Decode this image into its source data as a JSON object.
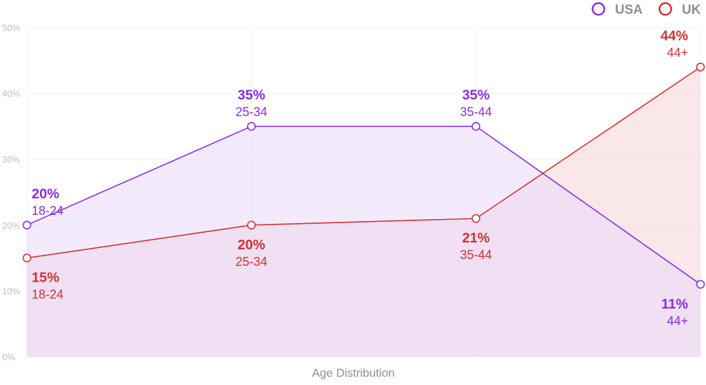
{
  "chart_data": {
    "type": "area",
    "categories": [
      "18-24",
      "25-34",
      "35-44",
      "44+"
    ],
    "series": [
      {
        "name": "USA",
        "values": [
          20,
          35,
          35,
          11
        ],
        "color": "#8a2be2",
        "fill": "#e9d9fb",
        "fill_opacity": 0.55,
        "value_labels": [
          "20%",
          "35%",
          "35%",
          "11%"
        ],
        "category_labels": [
          "18-24",
          "25-34",
          "35-44",
          "44+"
        ]
      },
      {
        "name": "UK",
        "values": [
          15,
          20,
          21,
          44
        ],
        "color": "#cf3232",
        "fill": "#f3c9cf",
        "fill_opacity": 0.45,
        "value_labels": [
          "15%",
          "20%",
          "21%",
          "44%"
        ],
        "category_labels": [
          "18-24",
          "25-34",
          "35-44",
          "44+"
        ]
      }
    ],
    "xlabel": "Age Distribution",
    "ylabel": "",
    "ylim": [
      0,
      50
    ],
    "y_ticks": [
      "0%",
      "10%",
      "20%",
      "30%",
      "40%",
      "50%"
    ],
    "grid": true,
    "legend_position": "top-right"
  }
}
